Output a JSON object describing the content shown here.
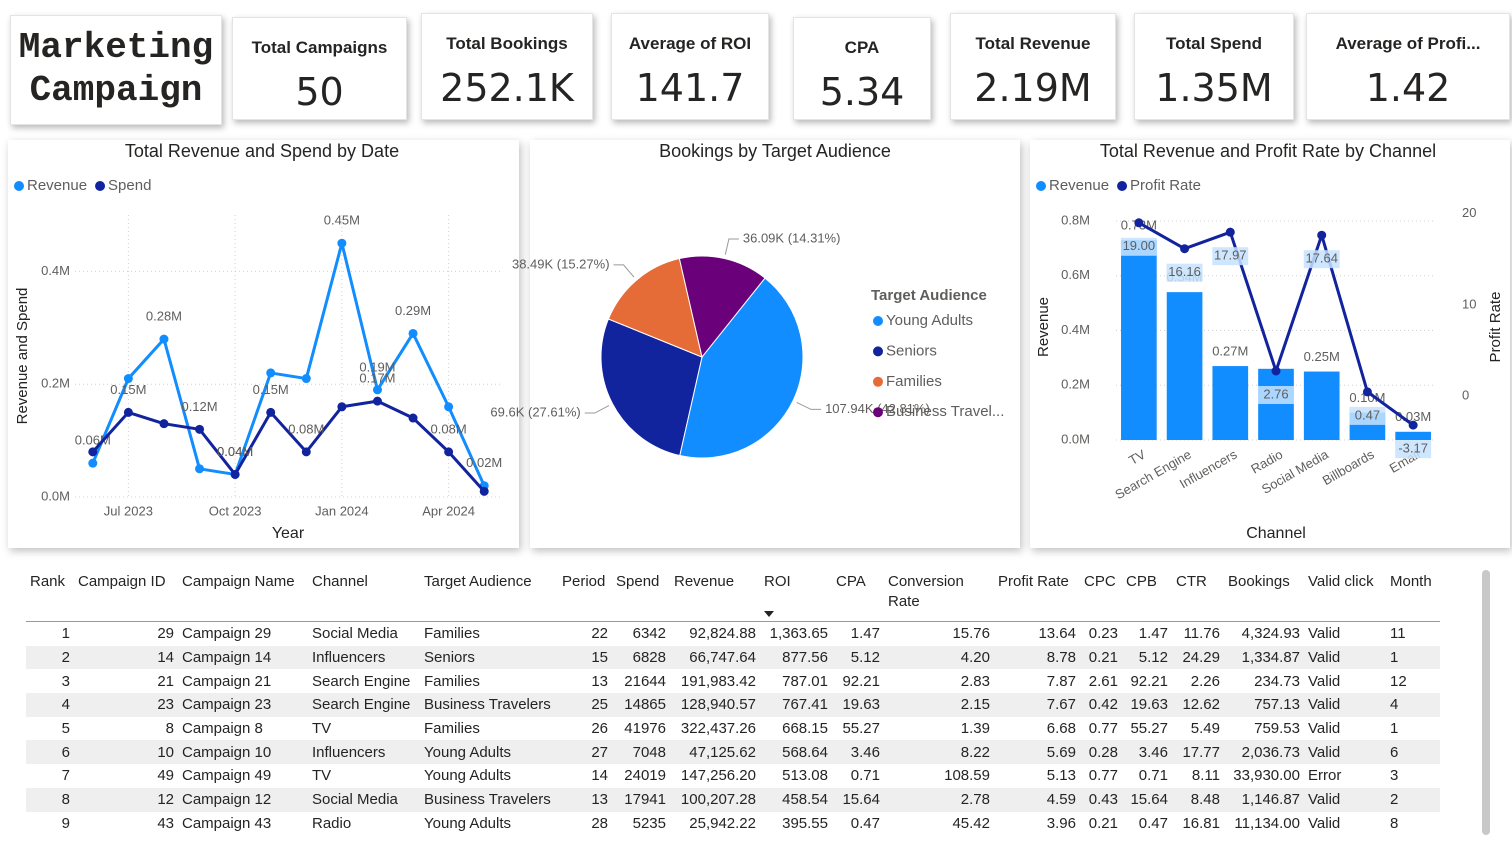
{
  "header": {
    "title": "Marketing Campaign"
  },
  "kpis": [
    {
      "label": "Total Campaigns",
      "value": "50"
    },
    {
      "label": "Total Bookings",
      "value": "252.1K"
    },
    {
      "label": "Average of ROI",
      "value": "141.7"
    },
    {
      "label": "CPA",
      "value": "5.34"
    },
    {
      "label": "Total Revenue",
      "value": "2.19M"
    },
    {
      "label": "Total Spend",
      "value": "1.35M"
    },
    {
      "label": "Average of Profi...",
      "value": "1.42"
    }
  ],
  "chart_data": [
    {
      "type": "line",
      "title": "Total Revenue and Spend by Date",
      "x_label": "Year",
      "y_label": "Revenue and Spend",
      "categories": [
        null,
        "Jul 2023",
        null,
        null,
        "Oct 2023",
        null,
        null,
        "Jan 2024",
        null,
        null,
        "Apr 2024",
        null
      ],
      "series": [
        {
          "name": "Revenue",
          "color": "#118DFF",
          "values": [
            0.06,
            0.21,
            0.28,
            0.05,
            0.04,
            0.22,
            0.21,
            0.45,
            0.19,
            0.29,
            0.16,
            0.02
          ],
          "value_labels": [
            "0.06M",
            null,
            "0.28M",
            null,
            "0.04M",
            null,
            null,
            "0.45M",
            "0.19M",
            "0.29M",
            null,
            "0.02M"
          ]
        },
        {
          "name": "Spend",
          "color": "#12239E",
          "values": [
            0.08,
            0.15,
            0.13,
            0.12,
            0.04,
            0.15,
            0.08,
            0.16,
            0.17,
            0.14,
            0.08,
            0.01
          ],
          "value_labels": [
            null,
            "0.15M",
            null,
            "0.12M",
            "0.04M",
            "0.15M",
            "0.08M",
            null,
            "0.17M",
            null,
            "0.08M",
            null
          ]
        }
      ],
      "ylim": [
        0,
        0.5
      ],
      "yticks": [
        {
          "value": 0,
          "label": "0.0M"
        },
        {
          "value": 0.2,
          "label": "0.2M"
        },
        {
          "value": 0.4,
          "label": "0.4M"
        }
      ],
      "grid": true,
      "legend": "top-left"
    },
    {
      "type": "pie",
      "title": "Bookings by Target Audience",
      "legend_title": "Target Audience",
      "categories": [
        "Young Adults",
        "Seniors",
        "Families",
        "Business Travel..."
      ],
      "values": [
        107.94,
        69.6,
        38.49,
        36.09
      ],
      "value_labels": [
        "107.94K (42.81%)",
        "69.6K (27.61%)",
        "38.49K (15.27%)",
        "36.09K (14.31%)"
      ],
      "colors": [
        "#118DFF",
        "#12239E",
        "#E66C37",
        "#6B007B"
      ],
      "legend": "right"
    },
    {
      "type": "combo",
      "title": "Total Revenue and Profit Rate by Channel",
      "x_label": "Channel",
      "y_label": "Revenue",
      "y2_label": "Profit Rate",
      "categories": [
        "TV",
        "Search Engine",
        "Influencers",
        "Radio",
        "Social Media",
        "Billboards",
        "Email"
      ],
      "series": [
        {
          "name": "Revenue",
          "type": "bar",
          "color": "#118DFF",
          "values": [
            0.73,
            0.54,
            0.27,
            0.26,
            0.25,
            0.1,
            0.03
          ],
          "value_labels": [
            "0.73M",
            "0.54M",
            "0.27M",
            null,
            "0.25M",
            "0.10M",
            "0.03M"
          ]
        },
        {
          "name": "Profit Rate",
          "type": "line",
          "axis": "y2",
          "color": "#12239E",
          "values": [
            19.0,
            16.16,
            17.97,
            2.76,
            17.64,
            0.47,
            -3.17
          ],
          "value_labels": [
            "19.00",
            "16.16",
            "17.97",
            "2.76",
            "17.64",
            "0.47",
            "-3.17"
          ]
        }
      ],
      "ylim": [
        0,
        0.84
      ],
      "yticks": [
        {
          "value": 0,
          "label": "0.0M"
        },
        {
          "value": 0.2,
          "label": "0.2M"
        },
        {
          "value": 0.4,
          "label": "0.4M"
        },
        {
          "value": 0.6,
          "label": "0.6M"
        },
        {
          "value": 0.8,
          "label": "0.8M"
        }
      ],
      "y2lim": [
        -4.8,
        20.4
      ],
      "y2ticks": [
        0,
        10,
        20
      ],
      "grid": true,
      "legend": "top-left"
    }
  ],
  "table": {
    "columns": [
      "Rank",
      "Campaign ID",
      "Campaign Name",
      "Channel",
      "Target Audience",
      "Period",
      "Spend",
      "Revenue",
      "ROI",
      "CPA",
      "Conversion Rate",
      "Profit Rate",
      "CPC",
      "CPB",
      "CTR",
      "Bookings",
      "Valid click",
      "Month"
    ],
    "rows": [
      [
        "1",
        "29",
        "Campaign 29",
        "Social Media",
        "Families",
        "22",
        "6342",
        "92,824.88",
        "1,363.65",
        "1.47",
        "15.76",
        "13.64",
        "0.23",
        "1.47",
        "11.76",
        "4,324.93",
        "Valid",
        "11"
      ],
      [
        "2",
        "14",
        "Campaign 14",
        "Influencers",
        "Seniors",
        "15",
        "6828",
        "66,747.64",
        "877.56",
        "5.12",
        "4.20",
        "8.78",
        "0.21",
        "5.12",
        "24.29",
        "1,334.87",
        "Valid",
        "1"
      ],
      [
        "3",
        "21",
        "Campaign 21",
        "Search Engine",
        "Families",
        "13",
        "21644",
        "191,983.42",
        "787.01",
        "92.21",
        "2.83",
        "7.87",
        "2.61",
        "92.21",
        "2.26",
        "234.73",
        "Valid",
        "12"
      ],
      [
        "4",
        "23",
        "Campaign 23",
        "Search Engine",
        "Business Travelers",
        "25",
        "14865",
        "128,940.57",
        "767.41",
        "19.63",
        "2.15",
        "7.67",
        "0.42",
        "19.63",
        "12.62",
        "757.13",
        "Valid",
        "4"
      ],
      [
        "5",
        "8",
        "Campaign 8",
        "TV",
        "Families",
        "26",
        "41976",
        "322,437.26",
        "668.15",
        "55.27",
        "1.39",
        "6.68",
        "0.77",
        "55.27",
        "5.49",
        "759.53",
        "Valid",
        "1"
      ],
      [
        "6",
        "10",
        "Campaign 10",
        "Influencers",
        "Young Adults",
        "27",
        "7048",
        "47,125.62",
        "568.64",
        "3.46",
        "8.22",
        "5.69",
        "0.28",
        "3.46",
        "17.77",
        "2,036.73",
        "Valid",
        "6"
      ],
      [
        "7",
        "49",
        "Campaign 49",
        "TV",
        "Young Adults",
        "14",
        "24019",
        "147,256.20",
        "513.08",
        "0.71",
        "108.59",
        "5.13",
        "0.77",
        "0.71",
        "8.11",
        "33,930.00",
        "Error",
        "3"
      ],
      [
        "8",
        "12",
        "Campaign 12",
        "Social Media",
        "Business Travelers",
        "13",
        "17941",
        "100,207.28",
        "458.54",
        "15.64",
        "2.78",
        "4.59",
        "0.43",
        "15.64",
        "8.48",
        "1,146.87",
        "Valid",
        "2"
      ],
      [
        "9",
        "43",
        "Campaign 43",
        "Radio",
        "Young Adults",
        "28",
        "5235",
        "25,942.22",
        "395.55",
        "0.47",
        "45.42",
        "3.96",
        "0.21",
        "0.47",
        "16.81",
        "11,134.00",
        "Valid",
        "8"
      ]
    ]
  }
}
